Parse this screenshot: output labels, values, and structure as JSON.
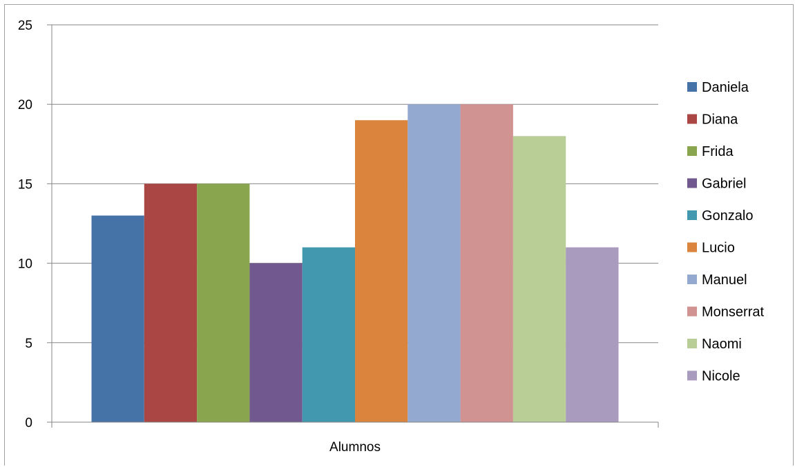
{
  "chart_data": {
    "type": "bar",
    "categories": [
      "Alumnos"
    ],
    "series": [
      {
        "name": "Daniela",
        "values": [
          13
        ],
        "color": "#4572A7"
      },
      {
        "name": "Diana",
        "values": [
          15
        ],
        "color": "#AA4643"
      },
      {
        "name": "Frida",
        "values": [
          15
        ],
        "color": "#89A54E"
      },
      {
        "name": "Gabriel",
        "values": [
          10
        ],
        "color": "#71588F"
      },
      {
        "name": "Gonzalo",
        "values": [
          11
        ],
        "color": "#4198AF"
      },
      {
        "name": "Lucio",
        "values": [
          19
        ],
        "color": "#DB843D"
      },
      {
        "name": "Manuel",
        "values": [
          20
        ],
        "color": "#93A9CF"
      },
      {
        "name": "Monserrat",
        "values": [
          20
        ],
        "color": "#D19392"
      },
      {
        "name": "Naomi",
        "values": [
          18
        ],
        "color": "#B9CD96"
      },
      {
        "name": "Nicole",
        "values": [
          11
        ],
        "color": "#A99BBD"
      }
    ],
    "title": "",
    "xlabel": "",
    "ylabel": "",
    "ylim": [
      0,
      25
    ],
    "yticks": [
      0,
      5,
      10,
      15,
      20,
      25
    ],
    "grid": true,
    "legend_position": "right"
  }
}
